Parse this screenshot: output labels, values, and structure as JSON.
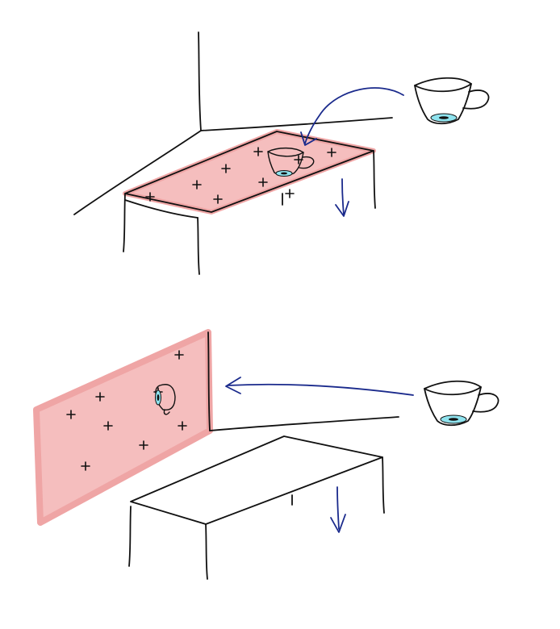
{
  "colors": {
    "surface_fill": "#f4b8b8",
    "surface_edge": "#ee9c9c",
    "liquid": "#8fe3ee",
    "gravity_arrow": "#1a2a8c",
    "ink": "#111111"
  },
  "icons": {
    "cup": "teacup-sketch",
    "arrow": "hand-drawn-arrow",
    "marker": "plus-marker"
  },
  "scenes": [
    {
      "id": "horizontal-surface",
      "surface": "table-top",
      "marker_count": 9
    },
    {
      "id": "vertical-surface",
      "surface": "wall",
      "marker_count": 8
    }
  ]
}
